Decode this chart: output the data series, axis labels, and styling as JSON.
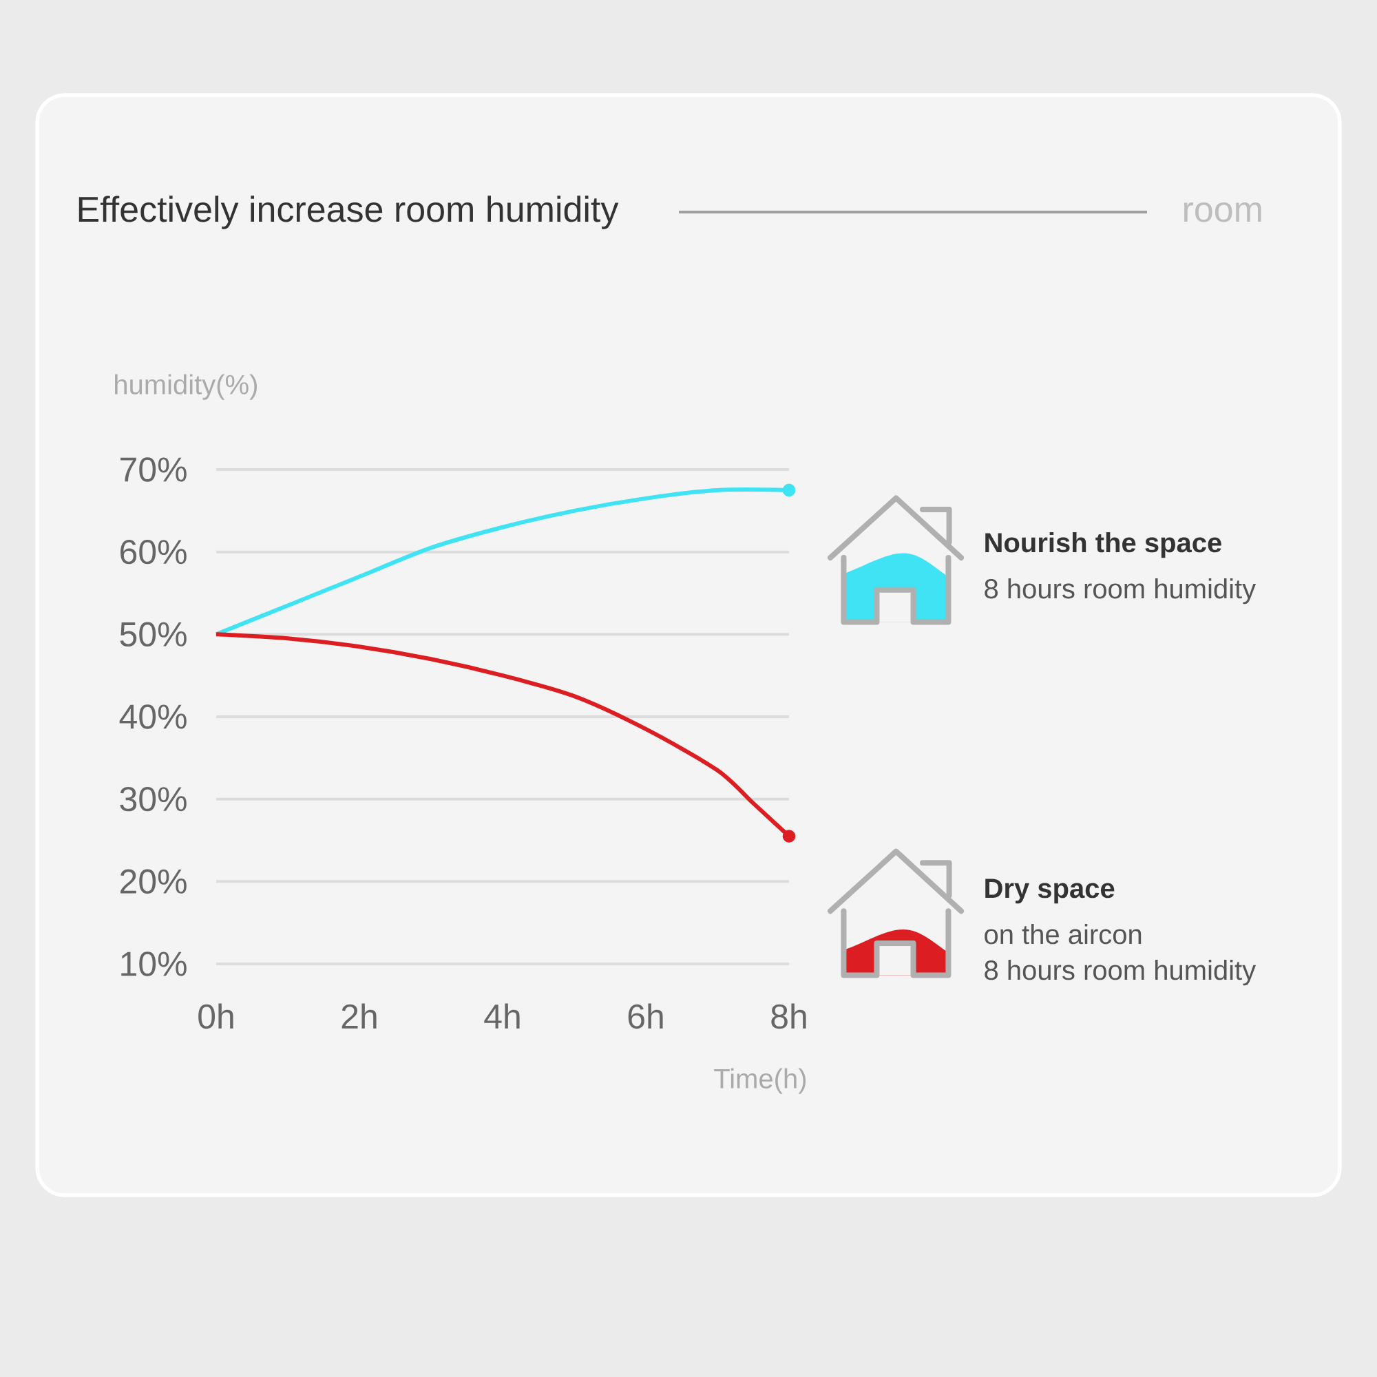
{
  "chart_data": {
    "type": "line",
    "title": "Effectively increase room humidity",
    "xlabel": "Time(h)",
    "ylabel": "humidity(%)",
    "x": [
      0,
      1,
      2,
      3,
      4,
      5,
      6,
      7,
      8
    ],
    "series": [
      {
        "name": "Nourish the space",
        "color": "#3fe3f3",
        "values": [
          50,
          53.5,
          57,
          60.5,
          63,
          65,
          66.5,
          67.5,
          67.5
        ]
      },
      {
        "name": "Dry space",
        "color": "#dc1e23",
        "x": [
          0,
          1,
          2,
          3,
          4,
          5,
          6,
          7,
          7.5,
          8
        ],
        "values": [
          50,
          49.5,
          48.5,
          47,
          45,
          42.5,
          38.5,
          33.5,
          29.5,
          25.5
        ]
      },
      {
        "type": "scatter",
        "color": "#3fe3f3",
        "x": [
          8
        ],
        "values": [
          67.5
        ],
        "marker": "circle"
      },
      {
        "type": "scatter",
        "color": "#dc1e23",
        "x": [
          8
        ],
        "values": [
          25.5
        ],
        "marker": "circle"
      }
    ],
    "xlim": [
      0,
      8
    ],
    "xticks": [
      {
        "value": 0,
        "label": "0h"
      },
      {
        "value": 2,
        "label": "2h"
      },
      {
        "value": 4,
        "label": "4h"
      },
      {
        "value": 6,
        "label": "6h"
      },
      {
        "value": 8,
        "label": "8h"
      }
    ],
    "ylim": [
      10,
      70
    ],
    "yticks": [
      {
        "value": 10,
        "label": "10%"
      },
      {
        "value": 20,
        "label": "20%"
      },
      {
        "value": 30,
        "label": "30%"
      },
      {
        "value": 40,
        "label": "40%"
      },
      {
        "value": 50,
        "label": "50%"
      },
      {
        "value": 60,
        "label": "60%"
      },
      {
        "value": 70,
        "label": "70%"
      }
    ],
    "grid": "y",
    "legend": "right",
    "annotations": [
      "room",
      "8 hours room humidity",
      "on the aircon",
      "8 hours room humidity"
    ]
  }
}
